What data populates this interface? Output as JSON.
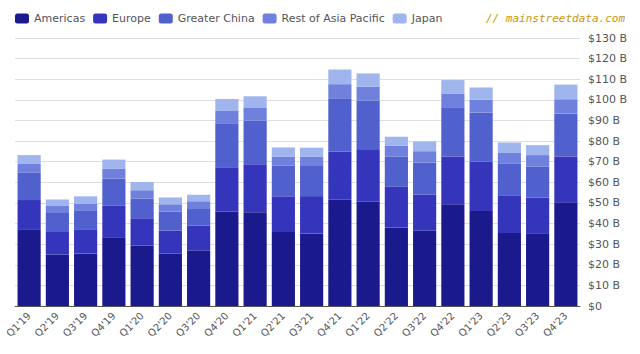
{
  "chart_data": {
    "type": "bar",
    "stacked": true,
    "categories": [
      "Q1'19",
      "Q2'19",
      "Q3'19",
      "Q4'19",
      "Q1'20",
      "Q2'20",
      "Q3'20",
      "Q4'20",
      "Q1'21",
      "Q2'21",
      "Q3'21",
      "Q4'21",
      "Q1'22",
      "Q2'22",
      "Q3'22",
      "Q4'22",
      "Q1'23",
      "Q2'23",
      "Q3'23",
      "Q4'23"
    ],
    "series": [
      {
        "name": "Americas",
        "color": "#1a1a8c",
        "values": [
          36.9,
          25.0,
          25.4,
          33.3,
          29.3,
          25.5,
          26.8,
          45.9,
          45.5,
          35.9,
          35.1,
          51.5,
          50.6,
          38.0,
          36.5,
          49.3,
          46.1,
          35.4,
          35.0,
          50.3
        ]
      },
      {
        "name": "Europe",
        "color": "#3535bb",
        "values": [
          14.5,
          10.9,
          11.5,
          15.3,
          13.3,
          11.1,
          12.3,
          21.4,
          23.3,
          17.3,
          18.2,
          23.5,
          25.1,
          19.8,
          17.6,
          23.2,
          23.9,
          18.0,
          17.6,
          22.2
        ]
      },
      {
        "name": "Greater China",
        "color": "#5060cc",
        "values": [
          13.2,
          9.2,
          9.2,
          13.2,
          9.4,
          9.3,
          7.9,
          21.3,
          21.0,
          14.8,
          14.6,
          25.8,
          23.9,
          14.6,
          15.5,
          23.9,
          23.9,
          15.8,
          15.1,
          20.8
        ]
      },
      {
        "name": "Rest of Asia Pacific",
        "color": "#7080dd",
        "values": [
          4.3,
          3.4,
          3.6,
          4.9,
          4.1,
          3.4,
          3.8,
          6.0,
          6.2,
          4.5,
          4.6,
          6.8,
          6.8,
          5.3,
          5.5,
          6.7,
          6.2,
          5.3,
          5.5,
          7.0
        ]
      },
      {
        "name": "Japan",
        "color": "#a0b4ee",
        "values": [
          4.3,
          3.2,
          3.5,
          4.3,
          4.0,
          3.3,
          3.2,
          5.8,
          5.8,
          4.4,
          4.3,
          7.1,
          6.4,
          4.4,
          4.7,
          6.5,
          5.9,
          4.8,
          4.8,
          7.1
        ]
      }
    ],
    "ylim": [
      0,
      130
    ],
    "yticks": [
      {
        "value": 0,
        "label": "$0"
      },
      {
        "value": 10,
        "label": "$10 B"
      },
      {
        "value": 20,
        "label": "$20 B"
      },
      {
        "value": 30,
        "label": "$30 B"
      },
      {
        "value": 40,
        "label": "$40 B"
      },
      {
        "value": 50,
        "label": "$50 B"
      },
      {
        "value": 60,
        "label": "$60 B"
      },
      {
        "value": 70,
        "label": "$70 B"
      },
      {
        "value": 80,
        "label": "$80 B"
      },
      {
        "value": 90,
        "label": "$90 B"
      },
      {
        "value": 100,
        "label": "$100 B"
      },
      {
        "value": 110,
        "label": "$110 B"
      },
      {
        "value": 120,
        "label": "$120 B"
      },
      {
        "value": 130,
        "label": "$130 B"
      }
    ],
    "grid": true,
    "legend": "upper left",
    "annotations": [
      "// mainstreetdata.com"
    ]
  }
}
